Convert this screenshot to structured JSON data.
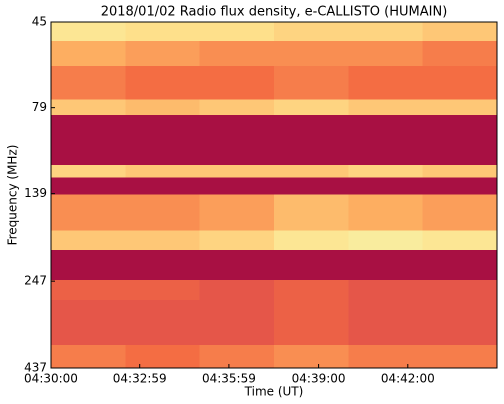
{
  "chart_data": {
    "type": "heatmap",
    "title": "2018/01/02  Radio flux density, e-CALLISTO (HUMAIN)",
    "x_label": "Time (UT)",
    "y_label": "Frequency (MHz)",
    "xlim": [
      0,
      900
    ],
    "xticks": [
      {
        "value": 0,
        "label": "04:30:00"
      },
      {
        "value": 179,
        "label": "04:32:59"
      },
      {
        "value": 359,
        "label": "04:35:59"
      },
      {
        "value": 540,
        "label": "04:39:00"
      },
      {
        "value": 720,
        "label": "04:42:00"
      }
    ],
    "ylim": [
      45,
      437
    ],
    "yticks": [
      45,
      79,
      139,
      247,
      437
    ],
    "ylog": true,
    "yinvert": true,
    "xbins": [
      0,
      150,
      300,
      450,
      600,
      750,
      900
    ],
    "ybins": [
      45,
      51,
      60,
      75,
      83,
      115,
      125,
      140,
      177,
      201,
      245,
      280,
      376,
      437
    ],
    "zlim": [
      0,
      1
    ],
    "colormap": [
      "#99003f",
      "#d53e4f",
      "#f46d43",
      "#fdae61",
      "#fee08b",
      "#f4f7b0"
    ],
    "z": [
      [
        0.85,
        0.8,
        0.8,
        0.75,
        0.75,
        0.7
      ],
      [
        0.6,
        0.55,
        0.5,
        0.5,
        0.5,
        0.45
      ],
      [
        0.45,
        0.4,
        0.4,
        0.45,
        0.4,
        0.4
      ],
      [
        0.7,
        0.65,
        0.7,
        0.75,
        0.7,
        0.7
      ],
      [
        0.05,
        0.05,
        0.05,
        0.05,
        0.05,
        0.05
      ],
      [
        0.75,
        0.7,
        0.7,
        0.7,
        0.75,
        0.7
      ],
      [
        0.05,
        0.05,
        0.05,
        0.05,
        0.05,
        0.05
      ],
      [
        0.5,
        0.5,
        0.55,
        0.65,
        0.6,
        0.55
      ],
      [
        0.7,
        0.7,
        0.75,
        0.85,
        0.9,
        0.85
      ],
      [
        0.05,
        0.05,
        0.05,
        0.05,
        0.05,
        0.05
      ],
      [
        0.35,
        0.35,
        0.3,
        0.35,
        0.3,
        0.3
      ],
      [
        0.3,
        0.3,
        0.3,
        0.35,
        0.3,
        0.3
      ],
      [
        0.45,
        0.4,
        0.45,
        0.5,
        0.45,
        0.45
      ]
    ]
  }
}
